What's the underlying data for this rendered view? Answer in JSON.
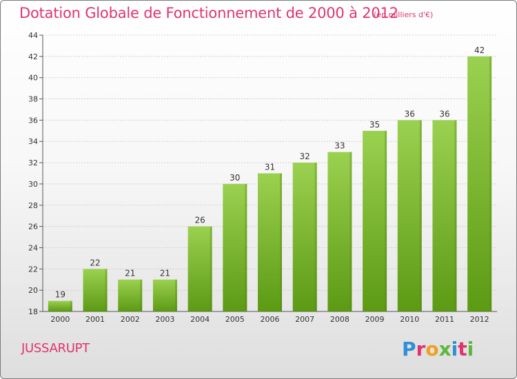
{
  "chart_data": {
    "type": "bar",
    "title": "Dotation Globale de Fonctionnement de 2000 à 2012",
    "subtitle": "(en milliers d'€)",
    "categories": [
      "2000",
      "2001",
      "2002",
      "2003",
      "2004",
      "2005",
      "2006",
      "2007",
      "2008",
      "2009",
      "2010",
      "2011",
      "2012"
    ],
    "values": [
      19,
      22,
      21,
      21,
      26,
      30,
      31,
      32,
      33,
      35,
      36,
      36,
      42
    ],
    "ylim": [
      18,
      44
    ],
    "yticks": [
      18,
      20,
      22,
      24,
      26,
      28,
      30,
      32,
      34,
      36,
      38,
      40,
      42,
      44
    ],
    "grid": true,
    "bar_color_top": "#9bd150",
    "bar_color_bottom": "#5c9a14"
  },
  "commune": "JUSSARUPT",
  "logo": {
    "letters": [
      "P",
      "r",
      "o",
      "x",
      "i",
      "t",
      "i"
    ]
  }
}
